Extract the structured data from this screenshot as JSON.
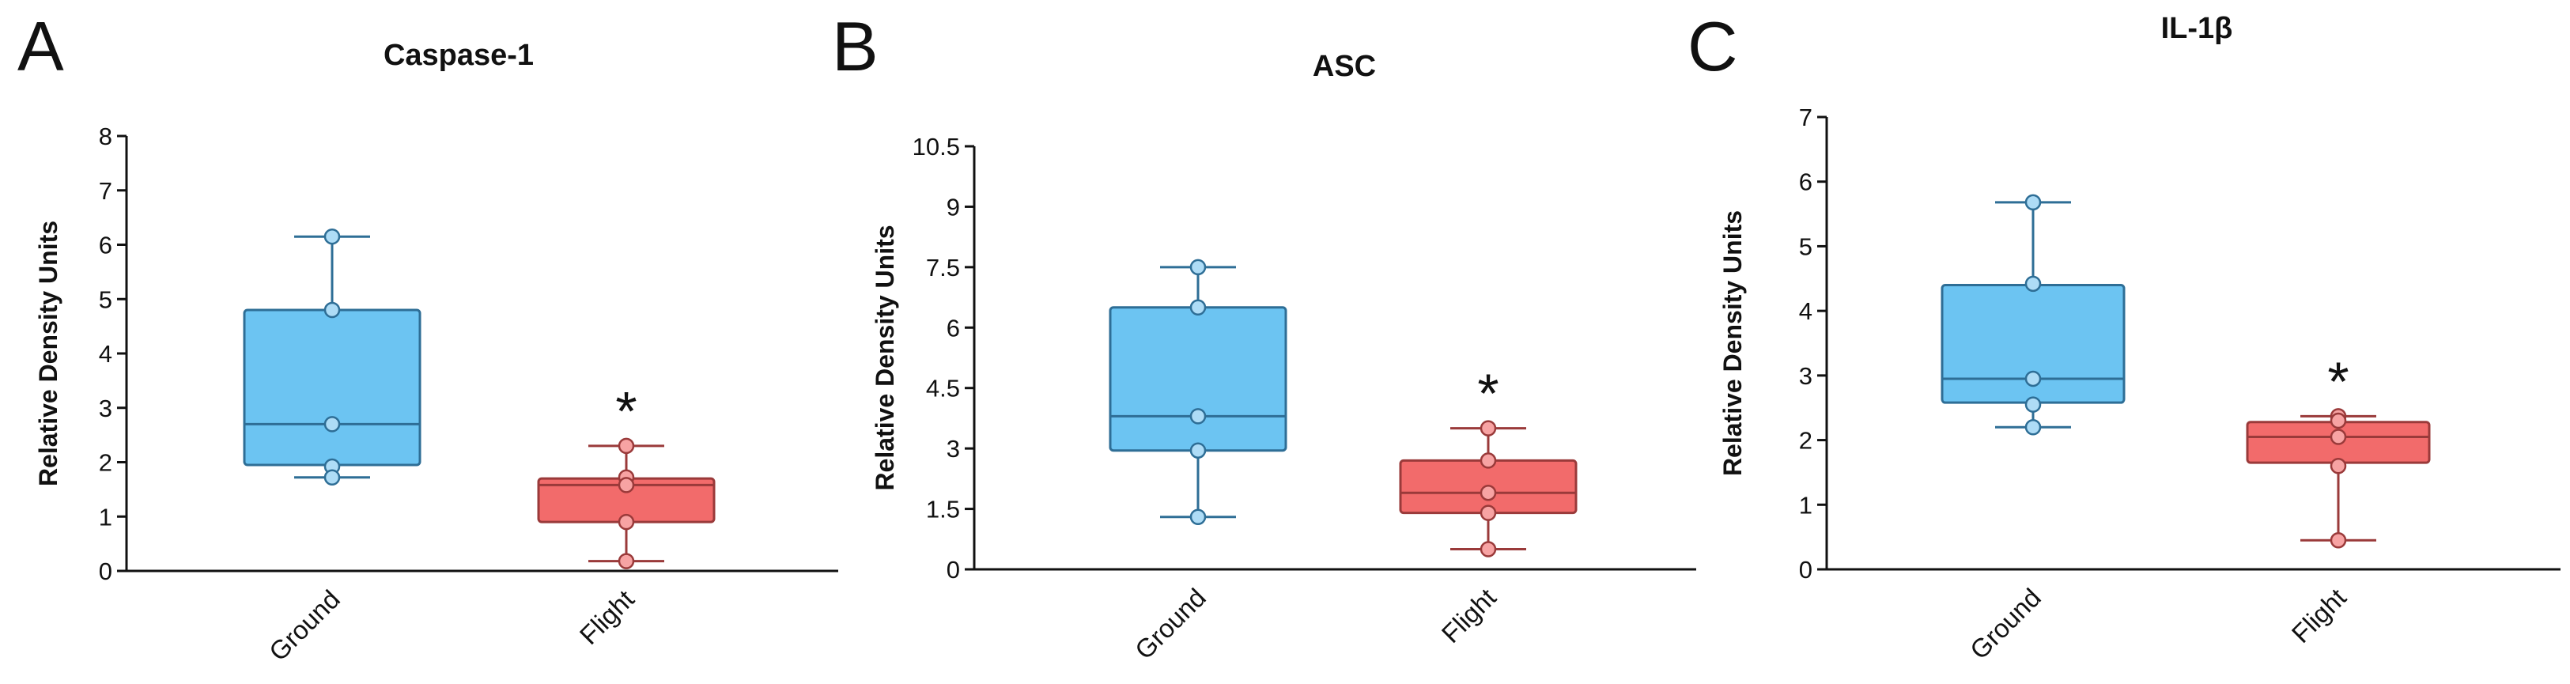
{
  "colors": {
    "ground_fill": "#6CC4F2",
    "ground_stroke": "#2E6E96",
    "flight_fill": "#F26B6B",
    "flight_stroke": "#9A3A3A",
    "ground_point": "#AEDCF6",
    "flight_point": "#F7A3A3",
    "axis": "#111111"
  },
  "chart_data": [
    {
      "panel": "A",
      "type": "box",
      "title": "Caspase-1",
      "ylabel": "Relative Density Units",
      "ylim": [
        0,
        8
      ],
      "yticks": [
        0,
        1,
        2,
        3,
        4,
        5,
        6,
        7,
        8
      ],
      "ytick_labels": [
        "0",
        "1",
        "2",
        "3",
        "4",
        "5",
        "6",
        "7",
        "8"
      ],
      "categories": [
        "Ground",
        "Flight"
      ],
      "boxes": [
        {
          "name": "Ground",
          "whisker_low": 1.72,
          "q1": 1.95,
          "median": 2.7,
          "q3": 4.8,
          "whisker_high": 6.15,
          "points": [
            6.15,
            4.8,
            2.7,
            1.92,
            1.72
          ]
        },
        {
          "name": "Flight",
          "whisker_low": 0.18,
          "q1": 0.9,
          "median": 1.58,
          "q3": 1.7,
          "whisker_high": 2.3,
          "points": [
            2.3,
            1.72,
            1.58,
            0.9,
            0.18
          ]
        }
      ],
      "significance": {
        "category": "Flight",
        "label": "*"
      }
    },
    {
      "panel": "B",
      "type": "box",
      "title": "ASC",
      "ylabel": "Relative Density Units",
      "ylim": [
        0,
        10.5
      ],
      "yticks": [
        0,
        1.5,
        3,
        4.5,
        6,
        7.5,
        9,
        10.5
      ],
      "ytick_labels": [
        "0",
        "1.5",
        "3",
        "4.5",
        "6",
        "7.5",
        "9",
        "10.5"
      ],
      "categories": [
        "Ground",
        "Flight"
      ],
      "boxes": [
        {
          "name": "Ground",
          "whisker_low": 1.3,
          "q1": 2.95,
          "median": 3.8,
          "q3": 6.5,
          "whisker_high": 7.5,
          "points": [
            7.5,
            6.5,
            3.8,
            2.95,
            1.3
          ]
        },
        {
          "name": "Flight",
          "whisker_low": 0.5,
          "q1": 1.4,
          "median": 1.9,
          "q3": 2.7,
          "whisker_high": 3.5,
          "points": [
            3.5,
            2.7,
            1.9,
            1.4,
            0.5
          ]
        }
      ],
      "significance": {
        "category": "Flight",
        "label": "*"
      }
    },
    {
      "panel": "C",
      "type": "box",
      "title": "IL-1β",
      "ylabel": "Relative Density Units",
      "ylim": [
        0,
        7
      ],
      "yticks": [
        0,
        1,
        2,
        3,
        4,
        5,
        6,
        7
      ],
      "ytick_labels": [
        "0",
        "1",
        "2",
        "3",
        "4",
        "5",
        "6",
        "7"
      ],
      "categories": [
        "Ground",
        "Flight"
      ],
      "boxes": [
        {
          "name": "Ground",
          "whisker_low": 2.2,
          "q1": 2.58,
          "median": 2.95,
          "q3": 4.4,
          "whisker_high": 5.68,
          "points": [
            5.68,
            4.42,
            2.95,
            2.55,
            2.2
          ]
        },
        {
          "name": "Flight",
          "whisker_low": 0.45,
          "q1": 1.65,
          "median": 2.05,
          "q3": 2.28,
          "whisker_high": 2.37,
          "points": [
            2.37,
            2.3,
            2.05,
            1.6,
            0.45
          ]
        }
      ],
      "significance": {
        "category": "Flight",
        "label": "*"
      }
    }
  ]
}
